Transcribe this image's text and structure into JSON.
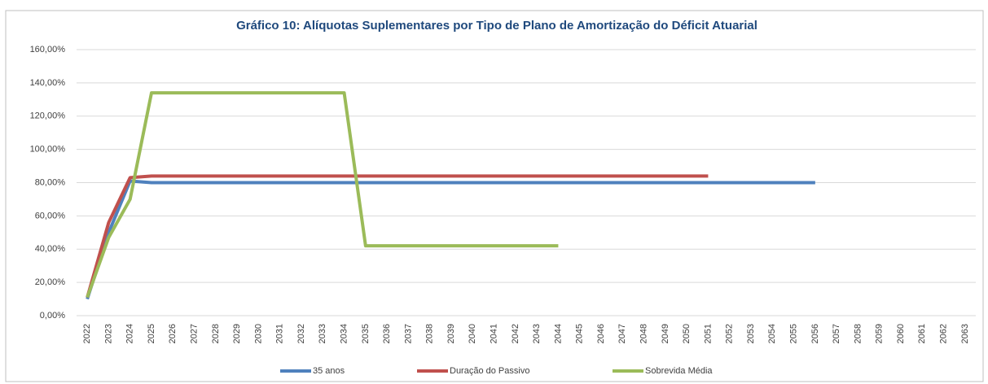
{
  "chart_data": {
    "type": "line",
    "title": "Gráfico 10: Alíquotas Suplementares por Tipo de Plano de Amortização do Déficit Atuarial",
    "categories": [
      "2022",
      "2023",
      "2024",
      "2025",
      "2026",
      "2027",
      "2028",
      "2029",
      "2030",
      "2031",
      "2032",
      "2033",
      "2034",
      "2035",
      "2036",
      "2037",
      "2038",
      "2039",
      "2040",
      "2041",
      "2042",
      "2043",
      "2044",
      "2045",
      "2046",
      "2047",
      "2048",
      "2049",
      "2050",
      "2051",
      "2052",
      "2053",
      "2054",
      "2055",
      "2056",
      "2057",
      "2058",
      "2059",
      "2060",
      "2061",
      "2062",
      "2063"
    ],
    "series": [
      {
        "name": "35 anos",
        "color": "#4f81bd",
        "values": [
          10,
          50,
          81,
          80,
          80,
          80,
          80,
          80,
          80,
          80,
          80,
          80,
          80,
          80,
          80,
          80,
          80,
          80,
          80,
          80,
          80,
          80,
          80,
          80,
          80,
          80,
          80,
          80,
          80,
          80,
          80,
          80,
          80,
          80,
          80,
          null,
          null,
          null,
          null,
          null,
          null,
          null
        ]
      },
      {
        "name": "Duração do Passivo",
        "color": "#c0504d",
        "values": [
          11,
          56,
          83,
          84,
          84,
          84,
          84,
          84,
          84,
          84,
          84,
          84,
          84,
          84,
          84,
          84,
          84,
          84,
          84,
          84,
          84,
          84,
          84,
          84,
          84,
          84,
          84,
          84,
          84,
          84,
          null,
          null,
          null,
          null,
          null,
          null,
          null,
          null,
          null,
          null,
          null,
          null
        ]
      },
      {
        "name": "Sobrevida Média",
        "color": "#9bbb59",
        "values": [
          11,
          47,
          70,
          134,
          134,
          134,
          134,
          134,
          134,
          134,
          134,
          134,
          134,
          42,
          42,
          42,
          42,
          42,
          42,
          42,
          42,
          42,
          42,
          null,
          null,
          null,
          null,
          null,
          null,
          null,
          null,
          null,
          null,
          null,
          null,
          null,
          null,
          null,
          null,
          null,
          null,
          null
        ]
      }
    ],
    "ylim": [
      0,
      160
    ],
    "yticks": [
      {
        "value": 0,
        "label": "0,00%"
      },
      {
        "value": 20,
        "label": "20,00%"
      },
      {
        "value": 40,
        "label": "40,00%"
      },
      {
        "value": 60,
        "label": "60,00%"
      },
      {
        "value": 80,
        "label": "80,00%"
      },
      {
        "value": 100,
        "label": "100,00%"
      },
      {
        "value": 120,
        "label": "120,00%"
      },
      {
        "value": 140,
        "label": "140,00%"
      },
      {
        "value": 160,
        "label": "160,00%"
      }
    ],
    "grid": true
  }
}
